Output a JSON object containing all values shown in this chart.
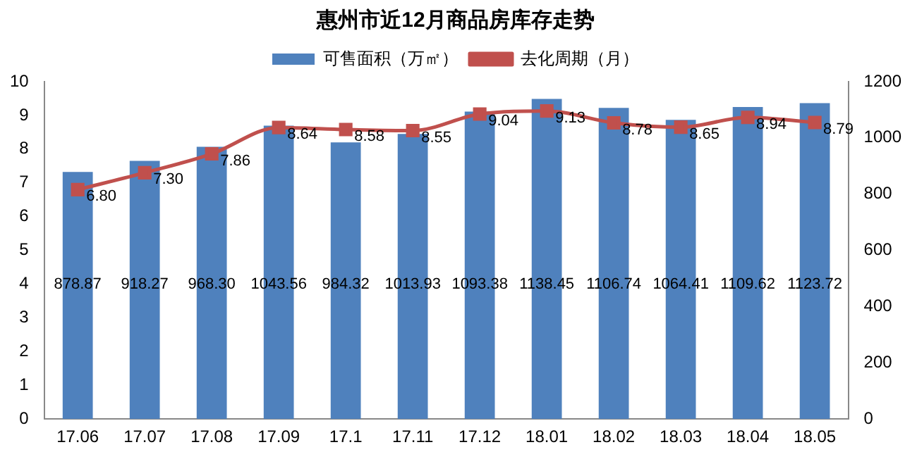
{
  "chart_data": {
    "type": "bar",
    "title": "惠州市近12月商品房库存走势",
    "categories": [
      "17.06",
      "17.07",
      "17.08",
      "17.09",
      "17.1",
      "17.11",
      "17.12",
      "18.01",
      "18.02",
      "18.03",
      "18.04",
      "18.05"
    ],
    "series": [
      {
        "name": "可售面积（万㎡）",
        "axis": "y2",
        "color": "#4f81bd",
        "values": [
          878.87,
          918.27,
          968.3,
          1043.56,
          984.32,
          1013.93,
          1093.38,
          1138.45,
          1106.74,
          1064.41,
          1109.62,
          1123.72
        ],
        "value_labels": [
          "878.87",
          "918.27",
          "968.30",
          "1043.56",
          "984.32",
          "1013.93",
          "1093.38",
          "1138.45",
          "1106.74",
          "1064.41",
          "1109.62",
          "1123.72"
        ]
      },
      {
        "name": "去化周期（月）",
        "type": "line",
        "axis": "y",
        "color": "#c0504d",
        "marker": "square",
        "values": [
          6.8,
          7.3,
          7.86,
          8.64,
          8.58,
          8.55,
          9.04,
          9.13,
          8.78,
          8.65,
          8.94,
          8.79
        ],
        "value_labels": [
          "6.80",
          "7.30",
          "7.86",
          "8.64",
          "8.58",
          "8.55",
          "9.04",
          "9.13",
          "8.78",
          "8.65",
          "8.94",
          "8.79"
        ]
      }
    ],
    "ylim": [
      0,
      10
    ],
    "yticks": [
      0,
      1,
      2,
      3,
      4,
      5,
      6,
      7,
      8,
      9,
      10
    ],
    "y2lim": [
      0,
      1200
    ],
    "y2ticks": [
      0,
      200,
      400,
      600,
      800,
      1000,
      1200
    ],
    "grid": false,
    "legend": "top"
  }
}
